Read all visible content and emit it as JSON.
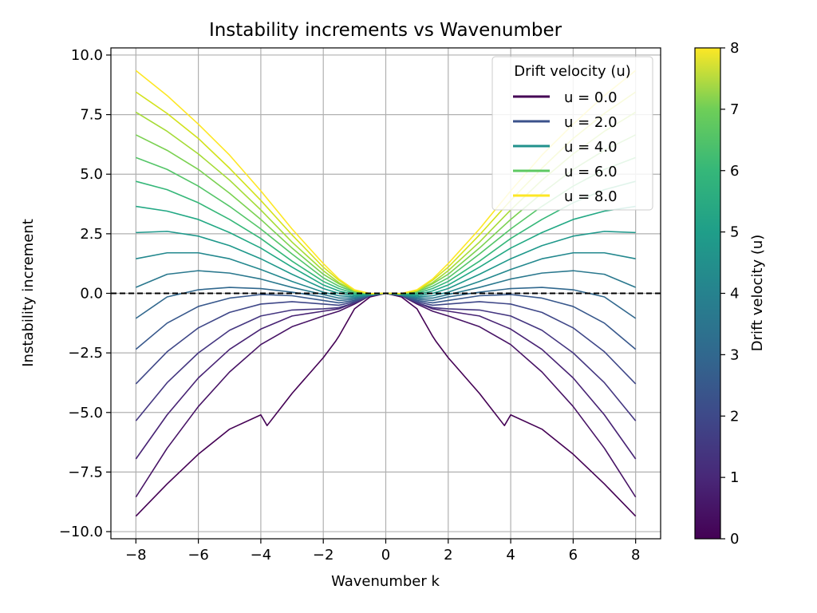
{
  "chart_data": {
    "type": "line",
    "title": "Instability increments vs Wavenumber",
    "xlabel": "Wavenumber k",
    "ylabel": "Instability increment",
    "xlim": [
      -8.8,
      8.8
    ],
    "ylim": [
      -10.3,
      10.3
    ],
    "x_ticks": [
      -8,
      -6,
      -4,
      -2,
      0,
      2,
      4,
      6,
      8
    ],
    "x_tick_labels": [
      "−8",
      "−6",
      "−4",
      "−2",
      "0",
      "2",
      "4",
      "6",
      "8"
    ],
    "y_ticks": [
      -10,
      -7.5,
      -5,
      -2.5,
      0,
      2.5,
      5,
      7.5,
      10
    ],
    "y_tick_labels": [
      "−10.0",
      "−7.5",
      "−5.0",
      "−2.5",
      "0.0",
      "2.5",
      "5.0",
      "7.5",
      "10.0"
    ],
    "grid": true,
    "reference_line": {
      "y": 0,
      "style": "dashed",
      "color": "#000000"
    },
    "colormap": "viridis",
    "colorbar": {
      "label": "Drift velocity (u)",
      "range": [
        0,
        8
      ],
      "ticks": [
        0,
        1,
        2,
        3,
        4,
        5,
        6,
        7,
        8
      ],
      "tick_labels": [
        "0",
        "1",
        "2",
        "3",
        "4",
        "5",
        "6",
        "7",
        "8"
      ]
    },
    "legend": {
      "title": "Drift velocity (u)",
      "position": "upper-right",
      "entries": [
        {
          "label": "u = 0.0",
          "color": "#440154"
        },
        {
          "label": "u = 2.0",
          "color": "#3b528b"
        },
        {
          "label": "u = 4.0",
          "color": "#21918c"
        },
        {
          "label": "u = 6.0",
          "color": "#5ec962"
        },
        {
          "label": "u = 8.0",
          "color": "#fde725"
        }
      ]
    },
    "series": [
      {
        "u": 0.0,
        "color": "#440154",
        "x": [
          -8,
          -7,
          -6,
          -5,
          -4,
          -3.8,
          -3,
          -2,
          -1.6,
          -1.5,
          -1,
          -0.5,
          0,
          0.5,
          1,
          1.5,
          1.6,
          2,
          3,
          3.8,
          4,
          5,
          6,
          7,
          8
        ],
        "y": [
          -9.35,
          -8.0,
          -6.75,
          -5.7,
          -5.1,
          -5.55,
          -4.2,
          -2.7,
          -2.0,
          -1.8,
          -0.65,
          -0.15,
          0.0,
          -0.15,
          -0.65,
          -1.8,
          -2.0,
          -2.7,
          -4.2,
          -5.55,
          -5.1,
          -5.7,
          -6.75,
          -8.0,
          -9.35
        ]
      },
      {
        "u": 0.5,
        "color": "#471365",
        "x": [
          -8,
          -7,
          -6,
          -5,
          -4,
          -3,
          -2,
          -1.5,
          -1,
          -0.5,
          0,
          0.5,
          1,
          1.5,
          2,
          3,
          4,
          5,
          6,
          7,
          8
        ],
        "y": [
          -8.55,
          -6.5,
          -4.75,
          -3.3,
          -2.15,
          -1.4,
          -0.95,
          -0.75,
          -0.45,
          -0.1,
          0.0,
          -0.1,
          -0.45,
          -0.75,
          -0.95,
          -1.4,
          -2.15,
          -3.3,
          -4.75,
          -6.5,
          -8.55
        ]
      },
      {
        "u": 1.0,
        "color": "#482374",
        "x": [
          -8,
          -7,
          -6,
          -5,
          -4,
          -3,
          -2,
          -1.5,
          -1,
          -0.5,
          0,
          0.5,
          1,
          1.5,
          2,
          3,
          4,
          5,
          6,
          7,
          8
        ],
        "y": [
          -6.95,
          -5.1,
          -3.55,
          -2.35,
          -1.5,
          -0.95,
          -0.75,
          -0.65,
          -0.4,
          -0.1,
          0.0,
          -0.1,
          -0.4,
          -0.65,
          -0.75,
          -0.95,
          -1.5,
          -2.35,
          -3.55,
          -5.1,
          -6.95
        ]
      },
      {
        "u": 1.5,
        "color": "#453781",
        "x": [
          -8,
          -7,
          -6,
          -5,
          -4,
          -3,
          -2,
          -1.5,
          -1,
          -0.5,
          0,
          0.5,
          1,
          1.5,
          2,
          3,
          4,
          5,
          6,
          7,
          8
        ],
        "y": [
          -5.35,
          -3.75,
          -2.5,
          -1.55,
          -0.95,
          -0.7,
          -0.65,
          -0.6,
          -0.4,
          -0.1,
          0.0,
          -0.1,
          -0.4,
          -0.6,
          -0.65,
          -0.7,
          -0.95,
          -1.55,
          -2.5,
          -3.75,
          -5.35
        ]
      },
      {
        "u": 2.0,
        "color": "#3f4788",
        "x": [
          -8,
          -7,
          -6,
          -5,
          -4,
          -3,
          -2,
          -1.5,
          -1,
          -0.5,
          0,
          0.5,
          1,
          1.5,
          2,
          3,
          4,
          5,
          6,
          7,
          8
        ],
        "y": [
          -3.8,
          -2.45,
          -1.45,
          -0.8,
          -0.45,
          -0.35,
          -0.45,
          -0.5,
          -0.35,
          -0.1,
          0.0,
          -0.1,
          -0.35,
          -0.5,
          -0.45,
          -0.35,
          -0.45,
          -0.8,
          -1.45,
          -2.45,
          -3.8
        ]
      },
      {
        "u": 2.5,
        "color": "#38588c",
        "x": [
          -8,
          -7,
          -6,
          -5,
          -4,
          -3,
          -2,
          -1.5,
          -1,
          -0.5,
          0,
          0.5,
          1,
          1.5,
          2,
          3,
          4,
          5,
          6,
          7,
          8
        ],
        "y": [
          -2.35,
          -1.25,
          -0.55,
          -0.2,
          -0.05,
          -0.1,
          -0.3,
          -0.4,
          -0.3,
          -0.1,
          0.0,
          -0.1,
          -0.3,
          -0.4,
          -0.3,
          -0.1,
          -0.05,
          -0.2,
          -0.55,
          -1.25,
          -2.35
        ]
      },
      {
        "u": 3.0,
        "color": "#31688e",
        "x": [
          -8,
          -7,
          -6,
          -5,
          -4,
          -3,
          -2,
          -1.5,
          -1,
          -0.5,
          0,
          0.5,
          1,
          1.5,
          2,
          3,
          4,
          5,
          6,
          7,
          8
        ],
        "y": [
          -1.05,
          -0.15,
          0.15,
          0.25,
          0.2,
          0.05,
          -0.15,
          -0.3,
          -0.25,
          -0.08,
          0.0,
          -0.08,
          -0.25,
          -0.3,
          -0.15,
          0.05,
          0.2,
          0.25,
          0.15,
          -0.15,
          -1.05
        ]
      },
      {
        "u": 3.5,
        "color": "#2a788e",
        "x": [
          -8,
          -7,
          -6,
          -5,
          -4,
          -3,
          -2,
          -1.5,
          -1,
          -0.5,
          0,
          0.5,
          1,
          1.5,
          2,
          3,
          4,
          5,
          6,
          7,
          8
        ],
        "y": [
          0.25,
          0.8,
          0.95,
          0.85,
          0.6,
          0.25,
          -0.05,
          -0.2,
          -0.2,
          -0.07,
          0.0,
          -0.07,
          -0.2,
          -0.2,
          -0.05,
          0.25,
          0.6,
          0.85,
          0.95,
          0.8,
          0.25
        ]
      },
      {
        "u": 4.0,
        "color": "#23888e",
        "x": [
          -8,
          -7,
          -6,
          -5,
          -4,
          -3,
          -2,
          -1.5,
          -1,
          -0.5,
          0,
          0.5,
          1,
          1.5,
          2,
          3,
          4,
          5,
          6,
          7,
          8
        ],
        "y": [
          1.45,
          1.7,
          1.7,
          1.45,
          1.0,
          0.5,
          0.05,
          -0.1,
          -0.15,
          -0.05,
          0.0,
          -0.05,
          -0.15,
          -0.1,
          0.05,
          0.5,
          1.0,
          1.45,
          1.7,
          1.7,
          1.45
        ]
      },
      {
        "u": 4.5,
        "color": "#1f988b",
        "x": [
          -8,
          -7,
          -6,
          -5,
          -4,
          -3,
          -2,
          -1.5,
          -1,
          -0.5,
          0,
          0.5,
          1,
          1.5,
          2,
          3,
          4,
          5,
          6,
          7,
          8
        ],
        "y": [
          2.55,
          2.6,
          2.4,
          2.0,
          1.45,
          0.8,
          0.2,
          0.0,
          -0.1,
          -0.05,
          0.0,
          -0.05,
          -0.1,
          0.0,
          0.2,
          0.8,
          1.45,
          2.0,
          2.4,
          2.6,
          2.55
        ]
      },
      {
        "u": 5.0,
        "color": "#22a884",
        "x": [
          -8,
          -7,
          -6,
          -5,
          -4,
          -3,
          -2,
          -1.5,
          -1,
          -0.5,
          0,
          0.5,
          1,
          1.5,
          2,
          3,
          4,
          5,
          6,
          7,
          8
        ],
        "y": [
          3.65,
          3.45,
          3.1,
          2.55,
          1.9,
          1.1,
          0.35,
          0.1,
          -0.05,
          -0.04,
          0.0,
          -0.04,
          -0.05,
          0.1,
          0.35,
          1.1,
          1.9,
          2.55,
          3.1,
          3.45,
          3.65
        ]
      },
      {
        "u": 5.5,
        "color": "#35b779",
        "x": [
          -8,
          -7,
          -6,
          -5,
          -4,
          -3,
          -2,
          -1.5,
          -1,
          -0.5,
          0,
          0.5,
          1,
          1.5,
          2,
          3,
          4,
          5,
          6,
          7,
          8
        ],
        "y": [
          4.7,
          4.35,
          3.8,
          3.1,
          2.3,
          1.35,
          0.5,
          0.2,
          0.0,
          -0.03,
          0.0,
          -0.03,
          0.0,
          0.2,
          0.5,
          1.35,
          2.3,
          3.1,
          3.8,
          4.35,
          4.7
        ]
      },
      {
        "u": 6.0,
        "color": "#54c568",
        "x": [
          -8,
          -7,
          -6,
          -5,
          -4,
          -3,
          -2,
          -1.5,
          -1,
          -0.5,
          0,
          0.5,
          1,
          1.5,
          2,
          3,
          4,
          5,
          6,
          7,
          8
        ],
        "y": [
          5.7,
          5.2,
          4.5,
          3.65,
          2.7,
          1.65,
          0.65,
          0.3,
          0.05,
          -0.02,
          0.0,
          -0.02,
          0.05,
          0.3,
          0.65,
          1.65,
          2.7,
          3.65,
          4.5,
          5.2,
          5.7
        ]
      },
      {
        "u": 6.5,
        "color": "#7ad151",
        "x": [
          -8,
          -7,
          -6,
          -5,
          -4,
          -3,
          -2,
          -1.5,
          -1,
          -0.5,
          0,
          0.5,
          1,
          1.5,
          2,
          3,
          4,
          5,
          6,
          7,
          8
        ],
        "y": [
          6.65,
          6.0,
          5.2,
          4.2,
          3.1,
          1.9,
          0.8,
          0.4,
          0.08,
          -0.02,
          0.0,
          -0.02,
          0.08,
          0.4,
          0.8,
          1.9,
          3.1,
          4.2,
          5.2,
          6.0,
          6.65
        ]
      },
      {
        "u": 7.0,
        "color": "#a5db36",
        "x": [
          -8,
          -7,
          -6,
          -5,
          -4,
          -3,
          -2,
          -1.5,
          -1,
          -0.5,
          0,
          0.5,
          1,
          1.5,
          2,
          3,
          4,
          5,
          6,
          7,
          8
        ],
        "y": [
          7.6,
          6.8,
          5.85,
          4.75,
          3.5,
          2.15,
          0.95,
          0.45,
          0.1,
          -0.02,
          0.0,
          -0.02,
          0.1,
          0.45,
          0.95,
          2.15,
          3.5,
          4.75,
          5.85,
          6.8,
          7.6
        ]
      },
      {
        "u": 7.5,
        "color": "#d2e21b",
        "x": [
          -8,
          -7,
          -6,
          -5,
          -4,
          -3,
          -2,
          -1.5,
          -1,
          -0.5,
          0,
          0.5,
          1,
          1.5,
          2,
          3,
          4,
          5,
          6,
          7,
          8
        ],
        "y": [
          8.45,
          7.55,
          6.5,
          5.25,
          3.9,
          2.45,
          1.1,
          0.55,
          0.12,
          -0.01,
          0.0,
          -0.01,
          0.12,
          0.55,
          1.1,
          2.45,
          3.9,
          5.25,
          6.5,
          7.55,
          8.45
        ]
      },
      {
        "u": 8.0,
        "color": "#fde725",
        "x": [
          -8,
          -7,
          -6,
          -5,
          -4,
          -3,
          -2,
          -1.5,
          -1,
          -0.5,
          0,
          0.5,
          1,
          1.5,
          2,
          3,
          4,
          5,
          6,
          7,
          8
        ],
        "y": [
          9.35,
          8.3,
          7.1,
          5.8,
          4.3,
          2.7,
          1.25,
          0.6,
          0.15,
          -0.01,
          0.0,
          -0.01,
          0.15,
          0.6,
          1.25,
          2.7,
          4.3,
          5.8,
          7.1,
          8.3,
          9.35
        ]
      }
    ]
  }
}
